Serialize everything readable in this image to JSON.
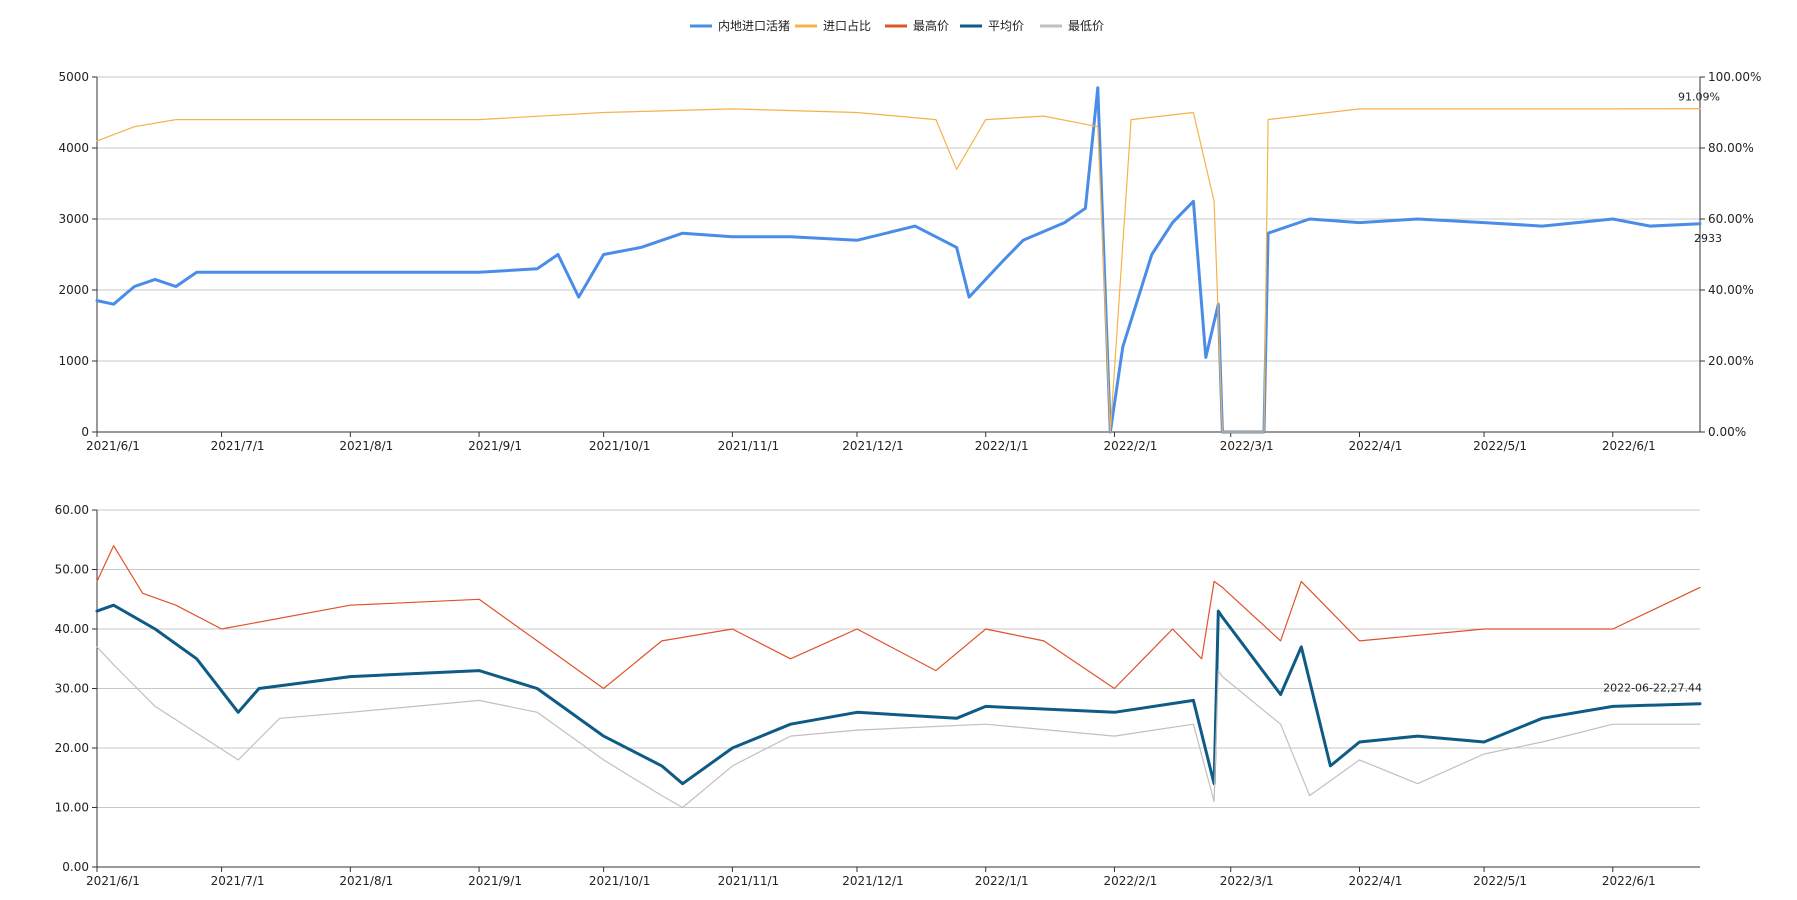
{
  "legend": {
    "position": "top-center",
    "items": [
      {
        "label": "内地进口活猪",
        "color": "#4a8de8"
      },
      {
        "label": "进口占比",
        "color": "#f5b347"
      },
      {
        "label": "最高价",
        "color": "#e0532a"
      },
      {
        "label": "平均价",
        "color": "#0e5c86"
      },
      {
        "label": "最低价",
        "color": "#c0c0c0"
      }
    ]
  },
  "chart_data": [
    {
      "type": "line",
      "x_range": [
        "2021-06-01",
        "2022-06-22"
      ],
      "x_ticks": [
        "2021/6/1",
        "2021/7/1",
        "2021/8/1",
        "2021/9/1",
        "2021/10/1",
        "2021/11/1",
        "2021/12/1",
        "2022/1/1",
        "2022/2/1",
        "2022/3/1",
        "2022/4/1",
        "2022/5/1",
        "2022/6/1"
      ],
      "y_left": {
        "ticks": [
          "0",
          "1000",
          "2000",
          "3000",
          "4000",
          "5000"
        ],
        "range": [
          0,
          5000
        ]
      },
      "y_right": {
        "ticks": [
          "0.00%",
          "20.00%",
          "40.00%",
          "60.00%",
          "80.00%",
          "100.00%"
        ],
        "range": [
          0,
          100
        ]
      },
      "grid": "horizontal",
      "series": [
        {
          "name": "内地进口活猪",
          "axis": "left",
          "color": "#4a8de8",
          "points": [
            [
              "2021-06-01",
              1850
            ],
            [
              "2021-06-05",
              1800
            ],
            [
              "2021-06-10",
              2050
            ],
            [
              "2021-06-15",
              2150
            ],
            [
              "2021-06-20",
              2050
            ],
            [
              "2021-06-25",
              2250
            ],
            [
              "2021-07-01",
              2250
            ],
            [
              "2021-07-10",
              2250
            ],
            [
              "2021-07-20",
              2250
            ],
            [
              "2021-08-01",
              2250
            ],
            [
              "2021-08-15",
              2250
            ],
            [
              "2021-09-01",
              2250
            ],
            [
              "2021-09-15",
              2300
            ],
            [
              "2021-09-20",
              2500
            ],
            [
              "2021-09-25",
              1900
            ],
            [
              "2021-10-01",
              2500
            ],
            [
              "2021-10-10",
              2600
            ],
            [
              "2021-10-20",
              2800
            ],
            [
              "2021-11-01",
              2750
            ],
            [
              "2021-11-15",
              2750
            ],
            [
              "2021-12-01",
              2700
            ],
            [
              "2021-12-15",
              2900
            ],
            [
              "2021-12-25",
              2600
            ],
            [
              "2021-12-28",
              1900
            ],
            [
              "2022-01-05",
              2400
            ],
            [
              "2022-01-10",
              2700
            ],
            [
              "2022-01-20",
              2950
            ],
            [
              "2022-01-25",
              3150
            ],
            [
              "2022-01-28",
              4850
            ],
            [
              "2022-01-31",
              0
            ],
            [
              "2022-02-03",
              1200
            ],
            [
              "2022-02-10",
              2500
            ],
            [
              "2022-02-15",
              2950
            ],
            [
              "2022-02-20",
              3250
            ],
            [
              "2022-02-23",
              1050
            ],
            [
              "2022-02-26",
              1800
            ],
            [
              "2022-02-27",
              0
            ],
            [
              "2022-03-09",
              0
            ],
            [
              "2022-03-10",
              2800
            ],
            [
              "2022-03-20",
              3000
            ],
            [
              "2022-04-01",
              2950
            ],
            [
              "2022-04-15",
              3000
            ],
            [
              "2022-05-01",
              2950
            ],
            [
              "2022-05-15",
              2900
            ],
            [
              "2022-06-01",
              3000
            ],
            [
              "2022-06-10",
              2900
            ],
            [
              "2022-06-22",
              2933
            ]
          ]
        },
        {
          "name": "进口占比",
          "axis": "right",
          "color": "#f5b347",
          "points": [
            [
              "2021-06-01",
              82
            ],
            [
              "2021-06-10",
              86
            ],
            [
              "2021-06-20",
              88
            ],
            [
              "2021-07-01",
              88
            ],
            [
              "2021-08-01",
              88
            ],
            [
              "2021-09-01",
              88
            ],
            [
              "2021-10-01",
              90
            ],
            [
              "2021-11-01",
              91
            ],
            [
              "2021-12-01",
              90
            ],
            [
              "2021-12-20",
              88
            ],
            [
              "2021-12-25",
              74
            ],
            [
              "2022-01-01",
              88
            ],
            [
              "2022-01-15",
              89
            ],
            [
              "2022-01-28",
              86
            ],
            [
              "2022-01-31",
              0
            ],
            [
              "2022-02-05",
              88
            ],
            [
              "2022-02-20",
              90
            ],
            [
              "2022-02-25",
              65
            ],
            [
              "2022-02-27",
              0
            ],
            [
              "2022-03-09",
              0
            ],
            [
              "2022-03-10",
              88
            ],
            [
              "2022-04-01",
              91
            ],
            [
              "2022-05-01",
              91
            ],
            [
              "2022-06-01",
              91
            ],
            [
              "2022-06-22",
              91.09
            ]
          ]
        }
      ],
      "annotations": [
        "2933",
        "91.09%"
      ]
    },
    {
      "type": "line",
      "x_range": [
        "2021-06-01",
        "2022-06-22"
      ],
      "x_ticks": [
        "2021/6/1",
        "2021/7/1",
        "2021/8/1",
        "2021/9/1",
        "2021/10/1",
        "2021/11/1",
        "2021/12/1",
        "2022/1/1",
        "2022/2/1",
        "2022/3/1",
        "2022/4/1",
        "2022/5/1",
        "2022/6/1"
      ],
      "y": {
        "ticks": [
          "0.00",
          "10.00",
          "20.00",
          "30.00",
          "40.00",
          "50.00",
          "60.00"
        ],
        "range": [
          0,
          60
        ]
      },
      "grid": "horizontal",
      "series": [
        {
          "name": "最高价",
          "color": "#e0532a",
          "points": [
            [
              "2021-06-01",
              48
            ],
            [
              "2021-06-05",
              54
            ],
            [
              "2021-06-12",
              46
            ],
            [
              "2021-06-20",
              44
            ],
            [
              "2021-07-01",
              40
            ],
            [
              "2021-08-01",
              44
            ],
            [
              "2021-09-01",
              45
            ],
            [
              "2021-09-15",
              38
            ],
            [
              "2021-10-01",
              30
            ],
            [
              "2021-10-15",
              38
            ],
            [
              "2021-11-01",
              40
            ],
            [
              "2021-11-15",
              35
            ],
            [
              "2021-12-01",
              40
            ],
            [
              "2021-12-20",
              33
            ],
            [
              "2022-01-01",
              40
            ],
            [
              "2022-01-15",
              38
            ],
            [
              "2022-02-01",
              30
            ],
            [
              "2022-02-15",
              40
            ],
            [
              "2022-02-22",
              35
            ],
            [
              "2022-02-25",
              48
            ],
            [
              "2022-02-27",
              47
            ],
            [
              "2022-03-13",
              38
            ],
            [
              "2022-03-18",
              48
            ],
            [
              "2022-04-01",
              38
            ],
            [
              "2022-05-01",
              40
            ],
            [
              "2022-06-01",
              40
            ],
            [
              "2022-06-22",
              47
            ]
          ]
        },
        {
          "name": "平均价",
          "color": "#0e5c86",
          "points": [
            [
              "2021-06-01",
              43
            ],
            [
              "2021-06-05",
              44
            ],
            [
              "2021-06-15",
              40
            ],
            [
              "2021-06-25",
              35
            ],
            [
              "2021-07-05",
              26
            ],
            [
              "2021-07-10",
              30
            ],
            [
              "2021-08-01",
              32
            ],
            [
              "2021-09-01",
              33
            ],
            [
              "2021-09-15",
              30
            ],
            [
              "2021-10-01",
              22
            ],
            [
              "2021-10-15",
              17
            ],
            [
              "2021-10-20",
              14
            ],
            [
              "2021-11-01",
              20
            ],
            [
              "2021-11-15",
              24
            ],
            [
              "2021-12-01",
              26
            ],
            [
              "2021-12-25",
              25
            ],
            [
              "2022-01-01",
              27
            ],
            [
              "2022-02-01",
              26
            ],
            [
              "2022-02-20",
              28
            ],
            [
              "2022-02-25",
              14
            ],
            [
              "2022-02-26",
              43
            ],
            [
              "2022-02-27",
              42
            ],
            [
              "2022-03-13",
              29
            ],
            [
              "2022-03-18",
              37
            ],
            [
              "2022-03-25",
              17
            ],
            [
              "2022-04-01",
              21
            ],
            [
              "2022-04-15",
              22
            ],
            [
              "2022-05-01",
              21
            ],
            [
              "2022-05-15",
              25
            ],
            [
              "2022-06-01",
              27
            ],
            [
              "2022-06-22",
              27.44
            ]
          ]
        },
        {
          "name": "最低价",
          "color": "#c0c0c0",
          "points": [
            [
              "2021-06-01",
              37
            ],
            [
              "2021-06-05",
              34
            ],
            [
              "2021-06-15",
              27
            ],
            [
              "2021-07-05",
              18
            ],
            [
              "2021-07-15",
              25
            ],
            [
              "2021-08-01",
              26
            ],
            [
              "2021-09-01",
              28
            ],
            [
              "2021-09-15",
              26
            ],
            [
              "2021-10-01",
              18
            ],
            [
              "2021-10-15",
              12
            ],
            [
              "2021-10-20",
              10
            ],
            [
              "2021-11-01",
              17
            ],
            [
              "2021-11-15",
              22
            ],
            [
              "2021-12-01",
              23
            ],
            [
              "2022-01-01",
              24
            ],
            [
              "2022-02-01",
              22
            ],
            [
              "2022-02-20",
              24
            ],
            [
              "2022-02-25",
              11
            ],
            [
              "2022-02-26",
              33
            ],
            [
              "2022-02-27",
              32
            ],
            [
              "2022-03-13",
              24
            ],
            [
              "2022-03-20",
              12
            ],
            [
              "2022-04-01",
              18
            ],
            [
              "2022-04-15",
              14
            ],
            [
              "2022-05-01",
              19
            ],
            [
              "2022-05-15",
              21
            ],
            [
              "2022-06-01",
              24
            ],
            [
              "2022-06-22",
              24
            ]
          ]
        }
      ],
      "annotations": [
        "2022-06-22,27.44"
      ]
    }
  ]
}
